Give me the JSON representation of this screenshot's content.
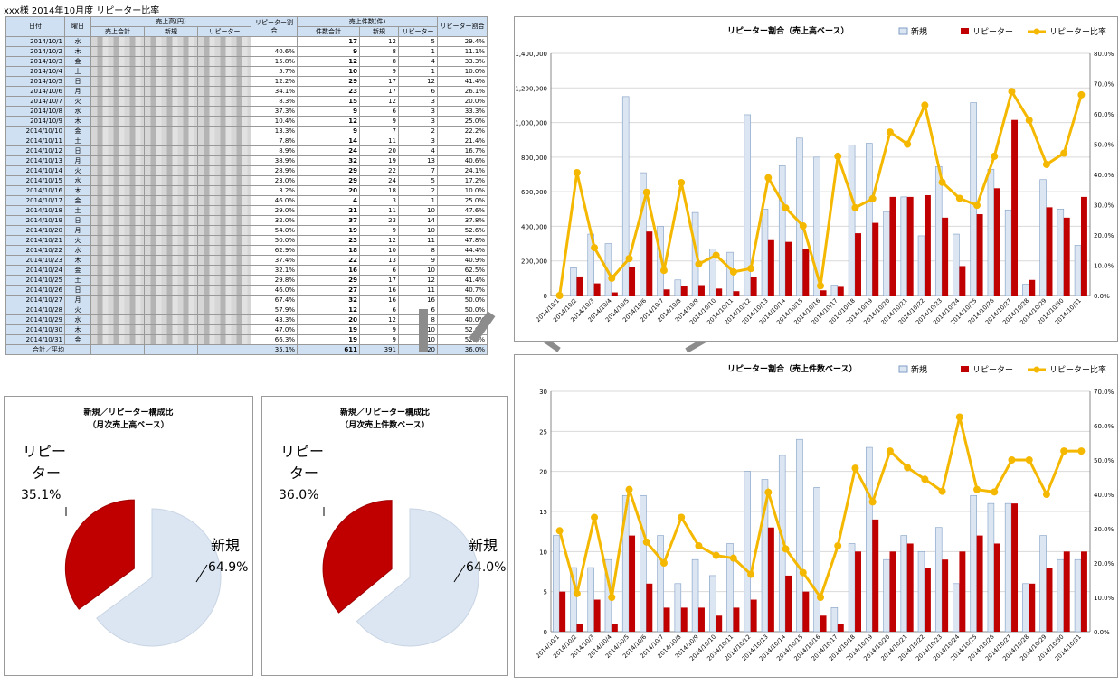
{
  "title": "xxx様 2014年10月度 リピーター比率",
  "table": {
    "headers": {
      "date": "日付",
      "dow": "曜日",
      "sales_group": "売上高(円)",
      "sales_total": "売上合計",
      "sales_new": "新規",
      "sales_rep": "リピーター",
      "rep_ratio": "リピーター割合",
      "count_group": "売上件数(件)",
      "count_total": "件数合計",
      "count_new": "新規",
      "count_rep": "リピーター",
      "rep_ratio2": "リピーター割合"
    },
    "rows": [
      {
        "date": "2014/10/1",
        "dow": "水",
        "ratio": "",
        "count": "17",
        "new": "12",
        "rep": "5",
        "ratio2": "29.4%"
      },
      {
        "date": "2014/10/2",
        "dow": "木",
        "ratio": "40.6%",
        "count": "9",
        "new": "8",
        "rep": "1",
        "ratio2": "11.1%"
      },
      {
        "date": "2014/10/3",
        "dow": "金",
        "ratio": "15.8%",
        "count": "12",
        "new": "8",
        "rep": "4",
        "ratio2": "33.3%"
      },
      {
        "date": "2014/10/4",
        "dow": "土",
        "ratio": "5.7%",
        "count": "10",
        "new": "9",
        "rep": "1",
        "ratio2": "10.0%"
      },
      {
        "date": "2014/10/5",
        "dow": "日",
        "ratio": "12.2%",
        "count": "29",
        "new": "17",
        "rep": "12",
        "ratio2": "41.4%"
      },
      {
        "date": "2014/10/6",
        "dow": "月",
        "ratio": "34.1%",
        "count": "23",
        "new": "17",
        "rep": "6",
        "ratio2": "26.1%"
      },
      {
        "date": "2014/10/7",
        "dow": "火",
        "ratio": "8.3%",
        "count": "15",
        "new": "12",
        "rep": "3",
        "ratio2": "20.0%"
      },
      {
        "date": "2014/10/8",
        "dow": "水",
        "ratio": "37.3%",
        "count": "9",
        "new": "6",
        "rep": "3",
        "ratio2": "33.3%"
      },
      {
        "date": "2014/10/9",
        "dow": "木",
        "ratio": "10.4%",
        "count": "12",
        "new": "9",
        "rep": "3",
        "ratio2": "25.0%"
      },
      {
        "date": "2014/10/10",
        "dow": "金",
        "ratio": "13.3%",
        "count": "9",
        "new": "7",
        "rep": "2",
        "ratio2": "22.2%"
      },
      {
        "date": "2014/10/11",
        "dow": "土",
        "ratio": "7.8%",
        "count": "14",
        "new": "11",
        "rep": "3",
        "ratio2": "21.4%"
      },
      {
        "date": "2014/10/12",
        "dow": "日",
        "ratio": "8.9%",
        "count": "24",
        "new": "20",
        "rep": "4",
        "ratio2": "16.7%"
      },
      {
        "date": "2014/10/13",
        "dow": "月",
        "ratio": "38.9%",
        "count": "32",
        "new": "19",
        "rep": "13",
        "ratio2": "40.6%"
      },
      {
        "date": "2014/10/14",
        "dow": "火",
        "ratio": "28.9%",
        "count": "29",
        "new": "22",
        "rep": "7",
        "ratio2": "24.1%"
      },
      {
        "date": "2014/10/15",
        "dow": "水",
        "ratio": "23.0%",
        "count": "29",
        "new": "24",
        "rep": "5",
        "ratio2": "17.2%"
      },
      {
        "date": "2014/10/16",
        "dow": "木",
        "ratio": "3.2%",
        "count": "20",
        "new": "18",
        "rep": "2",
        "ratio2": "10.0%"
      },
      {
        "date": "2014/10/17",
        "dow": "金",
        "ratio": "46.0%",
        "count": "4",
        "new": "3",
        "rep": "1",
        "ratio2": "25.0%"
      },
      {
        "date": "2014/10/18",
        "dow": "土",
        "ratio": "29.0%",
        "count": "21",
        "new": "11",
        "rep": "10",
        "ratio2": "47.6%"
      },
      {
        "date": "2014/10/19",
        "dow": "日",
        "ratio": "32.0%",
        "count": "37",
        "new": "23",
        "rep": "14",
        "ratio2": "37.8%"
      },
      {
        "date": "2014/10/20",
        "dow": "月",
        "ratio": "54.0%",
        "count": "19",
        "new": "9",
        "rep": "10",
        "ratio2": "52.6%"
      },
      {
        "date": "2014/10/21",
        "dow": "火",
        "ratio": "50.0%",
        "count": "23",
        "new": "12",
        "rep": "11",
        "ratio2": "47.8%"
      },
      {
        "date": "2014/10/22",
        "dow": "水",
        "ratio": "62.9%",
        "count": "18",
        "new": "10",
        "rep": "8",
        "ratio2": "44.4%"
      },
      {
        "date": "2014/10/23",
        "dow": "木",
        "ratio": "37.4%",
        "count": "22",
        "new": "13",
        "rep": "9",
        "ratio2": "40.9%"
      },
      {
        "date": "2014/10/24",
        "dow": "金",
        "ratio": "32.1%",
        "count": "16",
        "new": "6",
        "rep": "10",
        "ratio2": "62.5%"
      },
      {
        "date": "2014/10/25",
        "dow": "土",
        "ratio": "29.8%",
        "count": "29",
        "new": "17",
        "rep": "12",
        "ratio2": "41.4%"
      },
      {
        "date": "2014/10/26",
        "dow": "日",
        "ratio": "46.0%",
        "count": "27",
        "new": "16",
        "rep": "11",
        "ratio2": "40.7%"
      },
      {
        "date": "2014/10/27",
        "dow": "月",
        "ratio": "67.4%",
        "count": "32",
        "new": "16",
        "rep": "16",
        "ratio2": "50.0%"
      },
      {
        "date": "2014/10/28",
        "dow": "火",
        "ratio": "57.9%",
        "count": "12",
        "new": "6",
        "rep": "6",
        "ratio2": "50.0%"
      },
      {
        "date": "2014/10/29",
        "dow": "水",
        "ratio": "43.3%",
        "count": "20",
        "new": "12",
        "rep": "8",
        "ratio2": "40.0%"
      },
      {
        "date": "2014/10/30",
        "dow": "木",
        "ratio": "47.0%",
        "count": "19",
        "new": "9",
        "rep": "10",
        "ratio2": "52.6%"
      },
      {
        "date": "2014/10/31",
        "dow": "金",
        "ratio": "66.3%",
        "count": "19",
        "new": "9",
        "rep": "10",
        "ratio2": "52.6%"
      }
    ],
    "total": {
      "label": "合計／平均",
      "ratio": "35.1%",
      "count": "611",
      "new": "391",
      "rep": "220",
      "ratio2": "36.0%"
    }
  },
  "colors": {
    "new": "#dce6f2",
    "new_border": "#7f9dc4",
    "rep": "#c00000",
    "line": "#f5b800",
    "table_header": "#cfe0f3"
  },
  "pies": [
    {
      "title1": "新規／リピーター構成比",
      "title2": "（月次売上高ベース）",
      "rep_label": "リピー\nター",
      "rep_pct": "35.1%",
      "new_label": "新規",
      "new_pct": "64.9%",
      "rep_value": 35.1,
      "new_value": 64.9
    },
    {
      "title1": "新規／リピーター構成比",
      "title2": "（月次売上件数ベース）",
      "rep_label": "リピー\nター",
      "rep_pct": "36.0%",
      "new_label": "新規",
      "new_pct": "64.0%",
      "rep_value": 36.0,
      "new_value": 64.0
    }
  ],
  "chart_data": [
    {
      "type": "bar",
      "title": "リピーター割合（売上高ベース）",
      "legend": [
        "新規",
        "リピーター",
        "リピーター比率"
      ],
      "categories": [
        "2014/10/1",
        "2014/10/2",
        "2014/10/3",
        "2014/10/4",
        "2014/10/5",
        "2014/10/6",
        "2014/10/7",
        "2014/10/8",
        "2014/10/9",
        "2014/10/10",
        "2014/10/11",
        "2014/10/12",
        "2014/10/13",
        "2014/10/14",
        "2014/10/15",
        "2014/10/16",
        "2014/10/17",
        "2014/10/18",
        "2014/10/19",
        "2014/10/20",
        "2014/10/21",
        "2014/10/22",
        "2014/10/23",
        "2014/10/24",
        "2014/10/25",
        "2014/10/26",
        "2014/10/27",
        "2014/10/28",
        "2014/10/29",
        "2014/10/30",
        "2014/10/31"
      ],
      "series": [
        {
          "name": "新規",
          "values": [
            0,
            160000,
            355000,
            300000,
            1150000,
            710000,
            400000,
            90000,
            480000,
            270000,
            250000,
            1045000,
            500000,
            750000,
            910000,
            800000,
            60000,
            870000,
            880000,
            485000,
            570000,
            345000,
            745000,
            355000,
            1115000,
            730000,
            495000,
            65000,
            670000,
            500000,
            290000
          ]
        },
        {
          "name": "リピーター",
          "values": [
            0,
            110000,
            70000,
            18000,
            165000,
            370000,
            35000,
            55000,
            60000,
            40000,
            25000,
            105000,
            320000,
            310000,
            270000,
            30000,
            50000,
            360000,
            420000,
            570000,
            570000,
            580000,
            450000,
            170000,
            470000,
            620000,
            1015000,
            90000,
            510000,
            450000,
            570000
          ]
        },
        {
          "name": "リピーター比率",
          "values": [
            0,
            40.6,
            15.8,
            5.7,
            12.2,
            34.1,
            8.3,
            37.3,
            10.4,
            13.3,
            7.8,
            8.9,
            38.9,
            28.9,
            23.0,
            3.2,
            46.0,
            29.0,
            32.0,
            54.0,
            50.0,
            62.9,
            37.4,
            32.1,
            29.8,
            46.0,
            67.4,
            57.9,
            43.3,
            47.0,
            66.3
          ]
        }
      ],
      "y_ticks": [
        "0",
        "200,000",
        "400,000",
        "600,000",
        "800,000",
        "1,000,000",
        "1,200,000",
        "1,400,000"
      ],
      "y2_ticks": [
        "0.0%",
        "10.0%",
        "20.0%",
        "30.0%",
        "40.0%",
        "50.0%",
        "60.0%",
        "70.0%",
        "80.0%"
      ],
      "ylim": [
        0,
        1400000
      ],
      "y2lim": [
        0,
        80
      ]
    },
    {
      "type": "bar",
      "title": "リピーター割合（売上件数ベース）",
      "legend": [
        "新規",
        "リピーター",
        "リピーター比率"
      ],
      "categories": [
        "2014/10/1",
        "2014/10/2",
        "2014/10/3",
        "2014/10/4",
        "2014/10/5",
        "2014/10/6",
        "2014/10/7",
        "2014/10/8",
        "2014/10/9",
        "2014/10/10",
        "2014/10/11",
        "2014/10/12",
        "2014/10/13",
        "2014/10/14",
        "2014/10/15",
        "2014/10/16",
        "2014/10/17",
        "2014/10/18",
        "2014/10/19",
        "2014/10/20",
        "2014/10/21",
        "2014/10/22",
        "2014/10/23",
        "2014/10/24",
        "2014/10/25",
        "2014/10/26",
        "2014/10/27",
        "2014/10/28",
        "2014/10/29",
        "2014/10/30",
        "2014/10/31"
      ],
      "series": [
        {
          "name": "新規",
          "values": [
            12,
            8,
            8,
            9,
            17,
            17,
            12,
            6,
            9,
            7,
            11,
            20,
            19,
            22,
            24,
            18,
            3,
            11,
            23,
            9,
            12,
            10,
            13,
            6,
            17,
            16,
            16,
            6,
            12,
            9,
            9
          ]
        },
        {
          "name": "リピーター",
          "values": [
            5,
            1,
            4,
            1,
            12,
            6,
            3,
            3,
            3,
            2,
            3,
            4,
            13,
            7,
            5,
            2,
            1,
            10,
            14,
            10,
            11,
            8,
            9,
            10,
            12,
            11,
            16,
            6,
            8,
            10,
            10
          ]
        },
        {
          "name": "リピーター比率",
          "values": [
            29.4,
            11.1,
            33.3,
            10.0,
            41.4,
            26.1,
            20.0,
            33.3,
            25.0,
            22.2,
            21.4,
            16.7,
            40.6,
            24.1,
            17.2,
            10.0,
            25.0,
            47.6,
            37.8,
            52.6,
            47.8,
            44.4,
            40.9,
            62.5,
            41.4,
            40.7,
            50.0,
            50.0,
            40.0,
            52.6,
            52.6
          ]
        }
      ],
      "y_ticks": [
        "0",
        "5",
        "10",
        "15",
        "20",
        "25",
        "30"
      ],
      "y2_ticks": [
        "0.0%",
        "10.0%",
        "20.0%",
        "30.0%",
        "40.0%",
        "50.0%",
        "60.0%",
        "70.0%"
      ],
      "ylim": [
        0,
        30
      ],
      "y2lim": [
        0,
        70
      ]
    }
  ]
}
